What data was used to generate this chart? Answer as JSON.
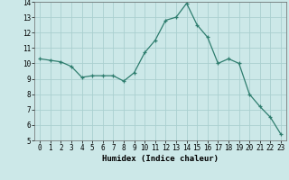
{
  "x": [
    0,
    1,
    2,
    3,
    4,
    5,
    6,
    7,
    8,
    9,
    10,
    11,
    12,
    13,
    14,
    15,
    16,
    17,
    18,
    19,
    20,
    21,
    22,
    23
  ],
  "y": [
    10.3,
    10.2,
    10.1,
    9.8,
    9.1,
    9.2,
    9.2,
    9.2,
    8.85,
    9.4,
    10.7,
    11.5,
    12.8,
    13.0,
    13.9,
    12.5,
    11.7,
    10.0,
    10.3,
    10.0,
    8.0,
    7.2,
    6.5,
    5.4
  ],
  "line_color": "#2e7d6e",
  "marker": "+",
  "marker_size": 3,
  "bg_color": "#cce8e8",
  "grid_color": "#aad0d0",
  "xlabel": "Humidex (Indice chaleur)",
  "ylim": [
    5,
    14
  ],
  "xlim": [
    -0.5,
    23.5
  ],
  "yticks": [
    5,
    6,
    7,
    8,
    9,
    10,
    11,
    12,
    13,
    14
  ],
  "xticks": [
    0,
    1,
    2,
    3,
    4,
    5,
    6,
    7,
    8,
    9,
    10,
    11,
    12,
    13,
    14,
    15,
    16,
    17,
    18,
    19,
    20,
    21,
    22,
    23
  ],
  "tick_fontsize": 5.5,
  "xlabel_fontsize": 6.5
}
